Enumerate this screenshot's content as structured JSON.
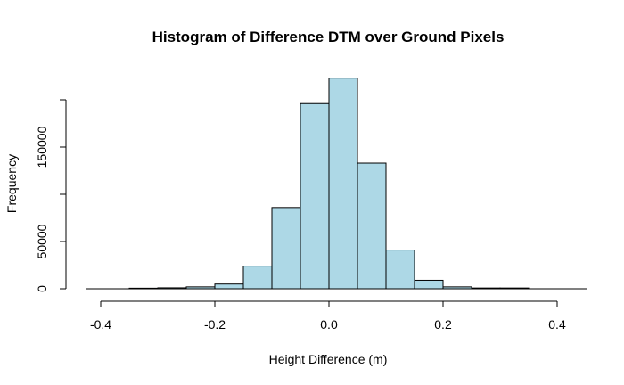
{
  "chart_data": {
    "type": "bar",
    "title": "Histogram of Difference DTM over Ground Pixels",
    "xlabel": "Height Difference (m)",
    "ylabel": "Frequency",
    "xlim": [
      -0.4,
      0.4
    ],
    "ylim": [
      0,
      200000
    ],
    "x_ticks": [
      -0.4,
      -0.2,
      0.0,
      0.2,
      0.4
    ],
    "x_tick_labels": [
      "-0.4",
      "-0.2",
      "0.0",
      "0.2",
      "0.4"
    ],
    "y_ticks": [
      0,
      50000,
      100000,
      150000,
      200000
    ],
    "y_tick_labels": [
      "0",
      "50000",
      "",
      "150000",
      ""
    ],
    "bin_width": 0.05,
    "bins": [
      {
        "start": -0.35,
        "end": -0.3,
        "value": 600
      },
      {
        "start": -0.3,
        "end": -0.25,
        "value": 1000
      },
      {
        "start": -0.25,
        "end": -0.2,
        "value": 2000
      },
      {
        "start": -0.2,
        "end": -0.15,
        "value": 5000
      },
      {
        "start": -0.15,
        "end": -0.1,
        "value": 24000
      },
      {
        "start": -0.1,
        "end": -0.05,
        "value": 86000
      },
      {
        "start": -0.05,
        "end": 0.0,
        "value": 196000
      },
      {
        "start": 0.0,
        "end": 0.05,
        "value": 223000
      },
      {
        "start": 0.05,
        "end": 0.1,
        "value": 133000
      },
      {
        "start": 0.1,
        "end": 0.15,
        "value": 41000
      },
      {
        "start": 0.15,
        "end": 0.2,
        "value": 9000
      },
      {
        "start": 0.2,
        "end": 0.25,
        "value": 2000
      },
      {
        "start": 0.25,
        "end": 0.3,
        "value": 800
      },
      {
        "start": 0.3,
        "end": 0.35,
        "value": 800
      }
    ],
    "colors": {
      "bar_fill": "#add8e6",
      "bar_stroke": "#000000"
    }
  }
}
